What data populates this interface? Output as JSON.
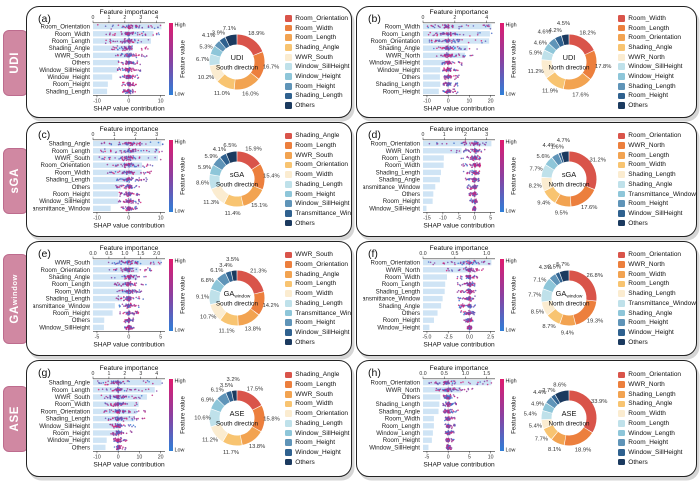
{
  "shared": {
    "top_axis_title": "Feature importance",
    "bottom_axis_title": "SHAP value contribution",
    "colorbar_title": "Feature value",
    "colorbar_high": "High",
    "colorbar_low": "Low"
  },
  "colors": {
    "palette": [
      "#d9544a",
      "#ec7f3d",
      "#f2a351",
      "#f8c471",
      "#fbecd0",
      "#bfe1ea",
      "#8ec6d9",
      "#5f94b8",
      "#2f618f",
      "#1b3a5f"
    ],
    "importance_bar": "#cfe4f5",
    "dot_low": "#2e7fd8",
    "dot_mid": "#8d3f9f",
    "dot_high": "#e01a6f",
    "band_bg": "#d088a2",
    "band_border": "#bd6c8e",
    "zero_line": "#cfcfcf"
  },
  "bands": [
    {
      "main": "UDI",
      "sub": ""
    },
    {
      "main": "sGA",
      "sub": ""
    },
    {
      "main": "GA",
      "sub": "window"
    },
    {
      "main": "ASE",
      "sub": ""
    }
  ],
  "chart_data": [
    {
      "panel_label": "(a)",
      "type": "shap_beeswarm_and_donut",
      "center": {
        "main": "UDI",
        "sub": "",
        "line2": "South direction"
      },
      "top_ticks": [
        "0",
        "1",
        "2",
        "3",
        "4"
      ],
      "bottom_ticks": [
        "-10",
        "0",
        "10"
      ],
      "beeswarm_features": [
        "Room_Orientation",
        "Room_Width",
        "Room_Length",
        "Shading_Angle",
        "WWR_South",
        "Others",
        "Window_SillHeight",
        "Window_Height",
        "Room_Height",
        "Shading_Length"
      ],
      "donut": {
        "labels": [
          "Room_Orientation",
          "Room_Width",
          "Room_Length",
          "Shading_Angle",
          "WWR_South",
          "Window_SillHeight",
          "Window_Height",
          "Room_Height",
          "Shading_Length",
          "Others"
        ],
        "values": [
          18.9,
          16.7,
          16.0,
          11.0,
          10.2,
          6.7,
          5.3,
          4.1,
          3.9,
          7.1
        ]
      }
    },
    {
      "panel_label": "(b)",
      "type": "shap_beeswarm_and_donut",
      "center": {
        "main": "UDI",
        "sub": "",
        "line2": "North direction"
      },
      "top_ticks": [
        "0",
        "2",
        "4"
      ],
      "bottom_ticks": [
        "-10",
        "0",
        "10",
        "20"
      ],
      "beeswarm_features": [
        "Room_Width",
        "Room_Length",
        "Room_Orientation",
        "Shading_Angle",
        "WWR_North",
        "Window_SillHeight",
        "Window_Height",
        "Others",
        "Shading_Length",
        "Room_Height"
      ],
      "donut": {
        "labels": [
          "Room_Width",
          "Room_Length",
          "Room_Orientation",
          "Shading_Angle",
          "WWR_North",
          "Window_SillHeight",
          "Window_Height",
          "Shading_Length",
          "Room_Height",
          "Others"
        ],
        "values": [
          18.2,
          17.8,
          17.6,
          11.9,
          11.2,
          5.9,
          4.6,
          4.6,
          4.2,
          4.5
        ]
      }
    },
    {
      "panel_label": "(c)",
      "type": "shap_beeswarm_and_donut",
      "center": {
        "main": "sGA",
        "sub": "",
        "line2": "South direction"
      },
      "top_ticks": [
        "0",
        "1",
        "2",
        "3"
      ],
      "bottom_ticks": [
        "-10",
        "0",
        "10"
      ],
      "beeswarm_features": [
        "Shading_Angle",
        "Room_Length",
        "WWR_South",
        "Room_Orientation",
        "Room_Width",
        "Shading_Length",
        "Others",
        "Room_Height",
        "Window_SillHeight",
        "Transmittance_Window"
      ],
      "donut": {
        "labels": [
          "Shading_Angle",
          "Room_Length",
          "WWR_South",
          "Room_Orientation",
          "Room_Width",
          "Shading_Length",
          "Room_Height",
          "Window_SillHeight",
          "Transmittance_Window",
          "Others"
        ],
        "values": [
          15.9,
          15.4,
          15.1,
          11.4,
          11.3,
          8.6,
          5.9,
          5.9,
          4.1,
          6.5
        ]
      }
    },
    {
      "panel_label": "(d)",
      "type": "shap_beeswarm_and_donut",
      "center": {
        "main": "sGA",
        "sub": "",
        "line2": "North direction"
      },
      "top_ticks": [
        "0",
        "1",
        "2",
        "3"
      ],
      "bottom_ticks": [
        "-15",
        "-10",
        "-5",
        "0",
        "5"
      ],
      "beeswarm_features": [
        "Room_Orientation",
        "WWR_North",
        "Room_Length",
        "Room_Width",
        "Shading_Length",
        "Shading_Angle",
        "Transmittance_Window",
        "Others",
        "Room_Height",
        "Window_SillHeight"
      ],
      "donut": {
        "labels": [
          "Room_Orientation",
          "WWR_North",
          "Room_Length",
          "Room_Width",
          "Shading_Length",
          "Shading_Angle",
          "Transmittance_Window",
          "Room_Height",
          "Window_SillHeight",
          "Others"
        ],
        "values": [
          31.2,
          17.6,
          9.5,
          9.4,
          8.2,
          7.7,
          5.6,
          4.4,
          1.6,
          4.7
        ]
      }
    },
    {
      "panel_label": "(e)",
      "type": "shap_beeswarm_and_donut",
      "center": {
        "main": "GA",
        "sub": "window",
        "line2": "South direction"
      },
      "top_ticks": [
        "0.0",
        "0.5",
        "1.0",
        "1.5",
        "2.0"
      ],
      "bottom_ticks": [
        "-5",
        "0",
        "5"
      ],
      "beeswarm_features": [
        "WWR_South",
        "Room_Orientation",
        "Shading_Angle",
        "Room_Length",
        "Room_Width",
        "Shading_Length",
        "Transmittance_Window",
        "Room_Height",
        "Others",
        "Window_SillHeight"
      ],
      "donut": {
        "labels": [
          "WWR_South",
          "Room_Orientation",
          "Shading_Angle",
          "Room_Length",
          "Room_Width",
          "Shading_Length",
          "Transmittance_Window",
          "Room_Height",
          "Window_SillHeight",
          "Others"
        ],
        "values": [
          21.3,
          14.2,
          13.8,
          11.1,
          10.7,
          9.1,
          6.8,
          6.1,
          3.4,
          3.5
        ]
      }
    },
    {
      "panel_label": "(f)",
      "type": "shap_beeswarm_and_donut",
      "center": {
        "main": "GA",
        "sub": "window",
        "line2": "North direction"
      },
      "top_ticks": [
        "0.0",
        "0.5",
        "1.0"
      ],
      "bottom_ticks": [
        "-5.0",
        "-2.5",
        "0.0",
        "2.5"
      ],
      "beeswarm_features": [
        "Room_Orientation",
        "WWR_North",
        "Room_Width",
        "Room_Length",
        "Shading_Length",
        "Transmittance_Window",
        "Shading_Angle",
        "Others",
        "Room_Height",
        "Window_Height"
      ],
      "donut": {
        "labels": [
          "Room_Orientation",
          "WWR_North",
          "Room_Width",
          "Room_Length",
          "Shading_Length",
          "Transmittance_Window",
          "Shading_Angle",
          "Room_Height",
          "Window_Height",
          "Others"
        ],
        "values": [
          26.8,
          19.3,
          9.4,
          8.7,
          8.5,
          7.7,
          7.1,
          4.3,
          2.5,
          5.7
        ]
      }
    },
    {
      "panel_label": "(g)",
      "type": "shap_beeswarm_and_donut",
      "center": {
        "main": "ASE",
        "sub": "",
        "line2": "South direction"
      },
      "top_ticks": [
        "0",
        "1",
        "2",
        "3",
        "4"
      ],
      "bottom_ticks": [
        "-10",
        "0",
        "10",
        "20"
      ],
      "beeswarm_features": [
        "Shading_Angle",
        "Room_Length",
        "WWR_South",
        "Room_Width",
        "Room_Orientation",
        "Shading_Length",
        "Window_SillHeight",
        "Room_Height",
        "Window_Height",
        "Others"
      ],
      "donut": {
        "labels": [
          "Shading_Angle",
          "Room_Length",
          "WWR_South",
          "Room_Width",
          "Room_Orientation",
          "Shading_Length",
          "Window_SillHeight",
          "Room_Height",
          "Window_Height",
          "Others"
        ],
        "values": [
          17.5,
          15.8,
          13.8,
          11.7,
          11.2,
          10.6,
          6.9,
          6.1,
          3.5,
          3.2
        ]
      }
    },
    {
      "panel_label": "(h)",
      "type": "shap_beeswarm_and_donut",
      "center": {
        "main": "ASE",
        "sub": "",
        "line2": "North direction"
      },
      "top_ticks": [
        "0.0",
        "0.5",
        "1.0",
        "1.5"
      ],
      "bottom_ticks": [
        "-5",
        "0",
        "5",
        "10"
      ],
      "beeswarm_features": [
        "Room_Orientation",
        "WWR_North",
        "Others",
        "Shading_Length",
        "Shading_Angle",
        "Room_Width",
        "Room_Length",
        "Window_Length",
        "Room_Height",
        "Window_SillHeight"
      ],
      "donut": {
        "labels": [
          "Room_Orientation",
          "WWR_North",
          "Shading_Length",
          "Shading_Angle",
          "Room_Width",
          "Room_Length",
          "Window_Length",
          "Room_Height",
          "Window_SillHeight",
          "Others"
        ],
        "values": [
          33.9,
          18.9,
          8.1,
          7.7,
          5.4,
          5.4,
          4.9,
          4.4,
          2.7,
          8.6
        ]
      }
    }
  ]
}
